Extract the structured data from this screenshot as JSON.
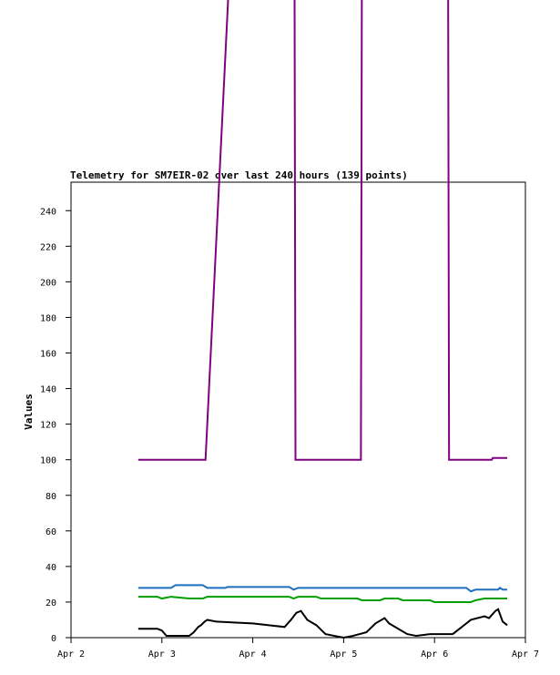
{
  "chart_data": {
    "type": "line",
    "title": "Telemetry for SM7EIR-02 over last 240 hours (139 points)",
    "y_label": "Values",
    "xlim": [
      2,
      7
    ],
    "xticks": [
      {
        "value": 2,
        "label": "Apr 2"
      },
      {
        "value": 3,
        "label": "Apr 3"
      },
      {
        "value": 4,
        "label": "Apr 4"
      },
      {
        "value": 5,
        "label": "Apr 5"
      },
      {
        "value": 6,
        "label": "Apr 6"
      },
      {
        "value": 7,
        "label": "Apr 7"
      }
    ],
    "ylim": [
      0,
      256
    ],
    "yticks": [
      0,
      20,
      40,
      60,
      80,
      100,
      120,
      140,
      160,
      180,
      200,
      220,
      240
    ],
    "grid": false,
    "series": [
      {
        "color": "#800080",
        "x": [
          2.74,
          3.48,
          3.73,
          4.46,
          4.47,
          5.19,
          5.2,
          6.15,
          6.16,
          6.63,
          6.64,
          6.8
        ],
        "values": [
          100,
          100,
          360,
          360,
          100,
          100,
          360,
          360,
          100,
          100,
          101,
          101
        ]
      },
      {
        "color": "#1f6fbf",
        "x": [
          2.74,
          3.1,
          3.15,
          3.45,
          3.5,
          3.7,
          3.72,
          4.4,
          4.45,
          4.5,
          6.35,
          6.4,
          6.45,
          6.7,
          6.72,
          6.75,
          6.8
        ],
        "values": [
          28,
          28,
          29.5,
          29.5,
          28,
          28,
          28.5,
          28.5,
          27,
          28,
          28,
          26,
          27,
          27,
          28,
          27,
          27
        ]
      },
      {
        "color": "#00a000",
        "x": [
          2.74,
          2.95,
          3.0,
          3.1,
          3.3,
          3.45,
          3.5,
          4.4,
          4.45,
          4.5,
          4.7,
          4.75,
          5.15,
          5.2,
          5.4,
          5.45,
          5.6,
          5.65,
          5.95,
          6.0,
          6.4,
          6.45,
          6.55,
          6.8
        ],
        "values": [
          23,
          23,
          22,
          23,
          22,
          22,
          23,
          23,
          22,
          23,
          23,
          22,
          22,
          21,
          21,
          22,
          22,
          21,
          21,
          20,
          20,
          21,
          22,
          22
        ]
      },
      {
        "color": "#000000",
        "x": [
          2.74,
          2.95,
          3.0,
          3.05,
          3.3,
          3.35,
          3.4,
          3.43,
          3.47,
          3.5,
          3.6,
          4.0,
          4.35,
          4.42,
          4.48,
          4.53,
          4.6,
          4.7,
          4.8,
          4.9,
          5.0,
          5.1,
          5.25,
          5.35,
          5.45,
          5.5,
          5.6,
          5.7,
          5.8,
          5.95,
          6.2,
          6.3,
          6.4,
          6.55,
          6.6,
          6.67,
          6.7,
          6.75,
          6.8
        ],
        "values": [
          5,
          5,
          4,
          1,
          1,
          3,
          6,
          7,
          9,
          10,
          9,
          8,
          6,
          10,
          14,
          15,
          10,
          7,
          2,
          1,
          0,
          1,
          3,
          8,
          11,
          8,
          5,
          2,
          1,
          2,
          2,
          6,
          10,
          12,
          11,
          15,
          16,
          9,
          7
        ]
      }
    ]
  }
}
